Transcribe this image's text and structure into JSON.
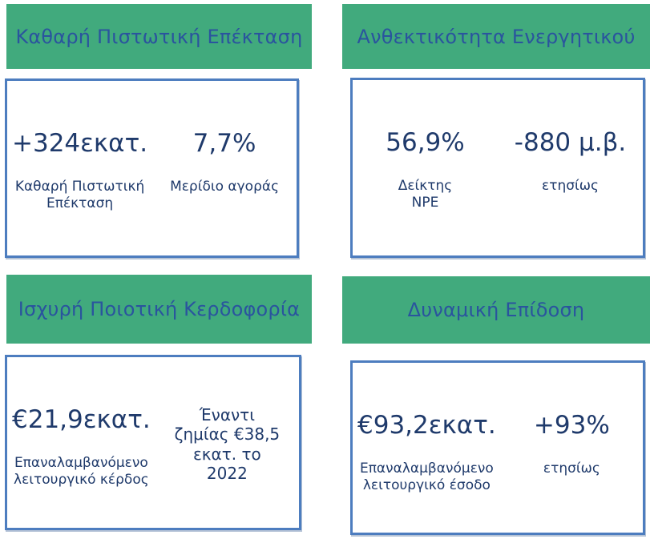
{
  "colors": {
    "banner_green": "#41AA7D",
    "title_blue": "#2A549E",
    "text_navy": "#1F3A6B",
    "box_border_blue": "#4D7DBF",
    "background": "#FFFFFF"
  },
  "cards": [
    {
      "title": "Καθαρή Πιστωτική Επέκταση",
      "metrics": [
        {
          "value": "+324εκατ.",
          "label": "Καθαρή Πιστωτική\nΕπέκταση"
        },
        {
          "value": "7,7%",
          "label": "Μερίδιο αγοράς"
        }
      ]
    },
    {
      "title": "Ανθεκτικότητα Ενεργητικού",
      "metrics": [
        {
          "value": "56,9%",
          "label": "Δείκτης\nNPE"
        },
        {
          "value": "-880 μ.β.",
          "label": "ετησίως"
        }
      ]
    },
    {
      "title": "Ισχυρή Ποιοτική Κερδοφορία",
      "metrics": [
        {
          "value": "€21,9εκατ.",
          "label": "Επαναλαμβανόμενο\nλειτουργικό κέρδος"
        },
        {
          "note": "Έναντι\nζημίας €38,5\nεκατ. το\n2022"
        }
      ]
    },
    {
      "title": "Δυναμική Επίδοση",
      "metrics": [
        {
          "value": "€93,2εκατ.",
          "label": "Επαναλαμβανόμενο\nλειτουργικό έσοδο"
        },
        {
          "value": "+93%",
          "label": "ετησίως"
        }
      ]
    }
  ]
}
